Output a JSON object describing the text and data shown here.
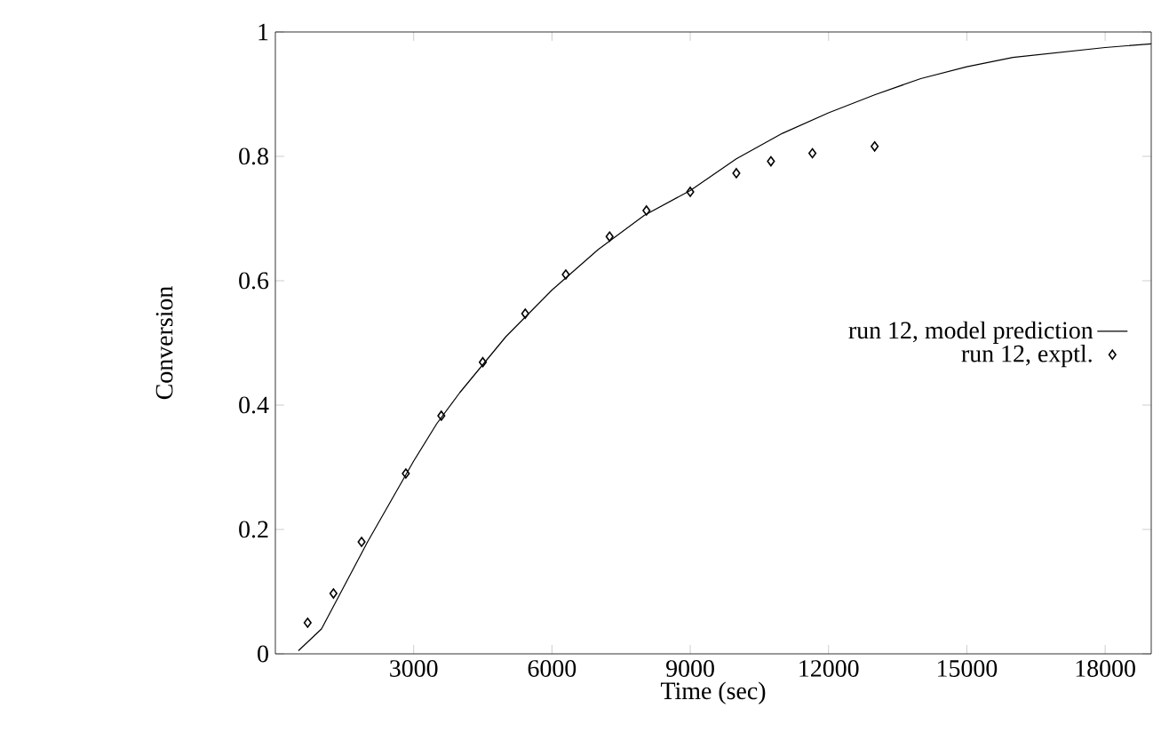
{
  "chart_data": {
    "type": "line",
    "xlabel": "Time (sec)",
    "ylabel": "Conversion",
    "xlim": [
      0,
      19000
    ],
    "ylim": [
      0,
      1
    ],
    "xticks": [
      3000,
      6000,
      9000,
      12000,
      15000,
      18000
    ],
    "yticks": [
      0,
      0.2,
      0.4,
      0.6,
      0.8,
      1
    ],
    "legend": "right",
    "grid": false,
    "series": [
      {
        "name": "run 12, model prediction",
        "color": "#000000",
        "marker": "none",
        "line_style": "solid",
        "x": [
          500,
          1000,
          1500,
          2000,
          2500,
          3000,
          3500,
          4000,
          4500,
          5000,
          6000,
          7000,
          8000,
          9000,
          10000,
          11000,
          12000,
          13000,
          14000,
          15000,
          16000,
          17000,
          18000,
          19000
        ],
        "values": [
          0.005,
          0.04,
          0.11,
          0.18,
          0.245,
          0.31,
          0.37,
          0.42,
          0.465,
          0.51,
          0.585,
          0.65,
          0.705,
          0.745,
          0.796,
          0.837,
          0.87,
          0.899,
          0.925,
          0.944,
          0.959,
          0.967,
          0.975,
          0.981
        ]
      },
      {
        "name": "run 12, exptl.",
        "type": "scatter",
        "color": "#000000",
        "marker": "diamond",
        "x": [
          700,
          1260,
          1870,
          2830,
          3600,
          4500,
          5420,
          6300,
          7250,
          8050,
          9000,
          10000,
          10750,
          11650,
          13000
        ],
        "values": [
          0.05,
          0.097,
          0.18,
          0.29,
          0.383,
          0.469,
          0.547,
          0.61,
          0.671,
          0.713,
          0.743,
          0.773,
          0.792,
          0.805,
          0.816
        ]
      }
    ]
  }
}
